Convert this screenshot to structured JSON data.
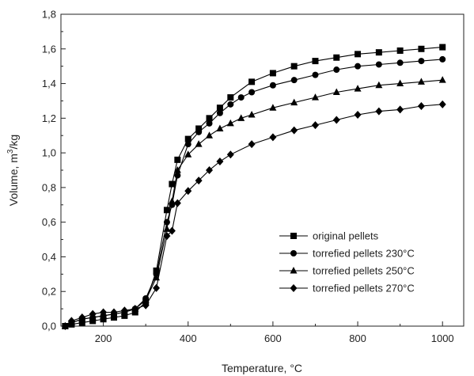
{
  "chart_data": {
    "type": "line",
    "title": "",
    "xlabel": "Temperature, °C",
    "ylabel_main": "Volume, m",
    "ylabel_sup": "3",
    "ylabel_tail": "/kg",
    "xlim": [
      100,
      1050
    ],
    "ylim": [
      0.0,
      1.8
    ],
    "xticks": [
      200,
      400,
      600,
      800,
      1000
    ],
    "yticks": [
      0.0,
      0.2,
      0.4,
      0.6,
      0.8,
      1.0,
      1.2,
      1.4,
      1.6,
      1.8
    ],
    "ytick_labels": [
      "0,0",
      "0,2",
      "0,4",
      "0,6",
      "0,8",
      "1,0",
      "1,2",
      "1,4",
      "1,6",
      "1,8"
    ],
    "grid": false,
    "legend_position": "bottom-right",
    "series": [
      {
        "name": "original pellets",
        "marker": "square",
        "points": [
          [
            110,
            0.0
          ],
          [
            125,
            0.01
          ],
          [
            150,
            0.02
          ],
          [
            175,
            0.03
          ],
          [
            200,
            0.04
          ],
          [
            225,
            0.05
          ],
          [
            250,
            0.06
          ],
          [
            275,
            0.08
          ],
          [
            300,
            0.14
          ],
          [
            325,
            0.32
          ],
          [
            350,
            0.67
          ],
          [
            362,
            0.82
          ],
          [
            375,
            0.96
          ],
          [
            400,
            1.08
          ],
          [
            425,
            1.14
          ],
          [
            450,
            1.2
          ],
          [
            475,
            1.26
          ],
          [
            500,
            1.32
          ],
          [
            550,
            1.41
          ],
          [
            600,
            1.46
          ],
          [
            650,
            1.5
          ],
          [
            700,
            1.53
          ],
          [
            750,
            1.55
          ],
          [
            800,
            1.57
          ],
          [
            850,
            1.58
          ],
          [
            900,
            1.59
          ],
          [
            950,
            1.6
          ],
          [
            1000,
            1.61
          ]
        ]
      },
      {
        "name": "torrefied pellets 230°C",
        "marker": "circle",
        "points": [
          [
            110,
            0.0
          ],
          [
            125,
            0.02
          ],
          [
            150,
            0.04
          ],
          [
            175,
            0.05
          ],
          [
            200,
            0.06
          ],
          [
            225,
            0.07
          ],
          [
            250,
            0.08
          ],
          [
            275,
            0.1
          ],
          [
            300,
            0.16
          ],
          [
            325,
            0.3
          ],
          [
            350,
            0.6
          ],
          [
            362,
            0.7
          ],
          [
            375,
            0.87
          ],
          [
            400,
            1.05
          ],
          [
            425,
            1.12
          ],
          [
            450,
            1.17
          ],
          [
            475,
            1.23
          ],
          [
            500,
            1.28
          ],
          [
            525,
            1.32
          ],
          [
            550,
            1.35
          ],
          [
            600,
            1.39
          ],
          [
            650,
            1.42
          ],
          [
            700,
            1.45
          ],
          [
            750,
            1.48
          ],
          [
            800,
            1.5
          ],
          [
            850,
            1.51
          ],
          [
            900,
            1.52
          ],
          [
            950,
            1.53
          ],
          [
            1000,
            1.54
          ]
        ]
      },
      {
        "name": "torrefied pellets 250°C",
        "marker": "triangle",
        "points": [
          [
            110,
            0.0
          ],
          [
            125,
            0.02
          ],
          [
            150,
            0.04
          ],
          [
            175,
            0.05
          ],
          [
            200,
            0.06
          ],
          [
            225,
            0.07
          ],
          [
            250,
            0.08
          ],
          [
            275,
            0.1
          ],
          [
            300,
            0.15
          ],
          [
            325,
            0.28
          ],
          [
            350,
            0.56
          ],
          [
            362,
            0.72
          ],
          [
            375,
            0.9
          ],
          [
            400,
            0.99
          ],
          [
            425,
            1.05
          ],
          [
            450,
            1.1
          ],
          [
            475,
            1.14
          ],
          [
            500,
            1.17
          ],
          [
            525,
            1.2
          ],
          [
            550,
            1.22
          ],
          [
            600,
            1.26
          ],
          [
            650,
            1.29
          ],
          [
            700,
            1.32
          ],
          [
            750,
            1.35
          ],
          [
            800,
            1.37
          ],
          [
            850,
            1.39
          ],
          [
            900,
            1.4
          ],
          [
            950,
            1.41
          ],
          [
            1000,
            1.42
          ]
        ]
      },
      {
        "name": "torrefied pellets 270°C",
        "marker": "diamond",
        "points": [
          [
            110,
            0.0
          ],
          [
            125,
            0.03
          ],
          [
            150,
            0.05
          ],
          [
            175,
            0.07
          ],
          [
            200,
            0.08
          ],
          [
            225,
            0.08
          ],
          [
            250,
            0.09
          ],
          [
            275,
            0.1
          ],
          [
            300,
            0.12
          ],
          [
            325,
            0.22
          ],
          [
            350,
            0.52
          ],
          [
            362,
            0.55
          ],
          [
            375,
            0.71
          ],
          [
            400,
            0.78
          ],
          [
            425,
            0.84
          ],
          [
            450,
            0.9
          ],
          [
            475,
            0.95
          ],
          [
            500,
            0.99
          ],
          [
            550,
            1.05
          ],
          [
            600,
            1.09
          ],
          [
            650,
            1.13
          ],
          [
            700,
            1.16
          ],
          [
            750,
            1.19
          ],
          [
            800,
            1.22
          ],
          [
            850,
            1.24
          ],
          [
            900,
            1.25
          ],
          [
            950,
            1.27
          ],
          [
            1000,
            1.28
          ]
        ]
      }
    ]
  }
}
